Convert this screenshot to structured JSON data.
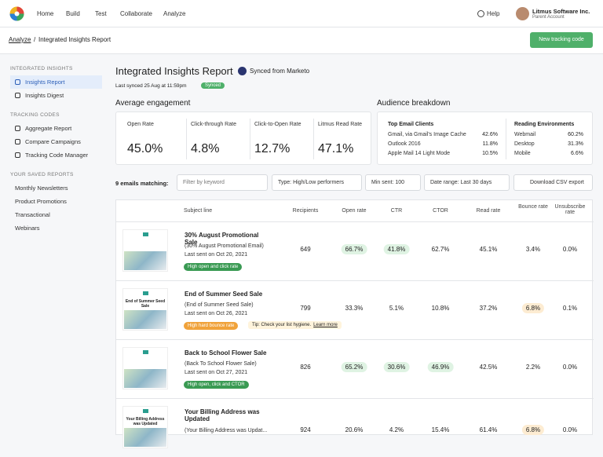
{
  "nav": {
    "items": [
      "Home",
      "Build",
      "Test",
      "Collaborate",
      "Analyze"
    ],
    "help": "Help",
    "account": "Litmus Software Inc.",
    "account_sub": "Parent Account"
  },
  "breadcrumb": {
    "parent": "Analyze",
    "separator": "/",
    "current": "Integrated Insights Report",
    "button": "New tracking code"
  },
  "sidebar": [
    {
      "heading": "INTEGRATED INSIGHTS",
      "items": [
        "Insights Report",
        "Insights Digest"
      ]
    },
    {
      "heading": "TRACKING CODES",
      "items": [
        "Aggregate Report",
        "Compare Campaigns",
        "Tracking Code Manager"
      ]
    },
    {
      "heading": "YOUR SAVED REPORTS",
      "items": [
        "Monthly Newsletters",
        "Product Promotions",
        "Transactional",
        "Webinars"
      ]
    }
  ],
  "header": {
    "title": "Integrated Insights Report",
    "sync_source": "Synced from Marketo",
    "last_synced": "Last synced 25 Aug at 11:59pm",
    "badge": "Synced"
  },
  "engagement": {
    "title": "Average engagement",
    "metrics": [
      {
        "label": "Open Rate",
        "value": "45.0%"
      },
      {
        "label": "Click-through Rate",
        "value": "4.8%"
      },
      {
        "label": "Click-to-Open Rate",
        "value": "12.7%"
      },
      {
        "label": "Litmus Read Rate",
        "value": "47.1%"
      }
    ]
  },
  "audience": {
    "title": "Audience breakdown",
    "groups": [
      {
        "heading": "Top Email Clients",
        "rows": [
          [
            "Gmail, via Gmail's Image Cache",
            "42.6%"
          ],
          [
            "Outlook 2016",
            "11.8%"
          ],
          [
            "Apple Mail 14 Light Mode",
            "10.5%"
          ]
        ]
      },
      {
        "heading": "Reading Environments",
        "rows": [
          [
            "Webmail",
            "60.2%"
          ],
          [
            "Desktop",
            "31.3%"
          ],
          [
            "Mobile",
            "6.6%"
          ]
        ]
      }
    ]
  },
  "filters": {
    "count": "9 emails matching:",
    "search_placeholder": "Filter by keyword",
    "type": "Type: High/Low performers",
    "min_sent": "Min sent: 100",
    "date_range": "Date range: Last 30 days",
    "download": "Download CSV export"
  },
  "table": {
    "headers": [
      "Subject line",
      "Recipients",
      "Open rate",
      "CTR",
      "CTOR",
      "Read rate",
      "Bounce rate",
      "Unsubscribe rate"
    ],
    "rows": [
      {
        "subject": "30% August Promotional Sale",
        "name": "(30% August Promotional Email)",
        "sent": "Last sent on Oct 20, 2021",
        "tag": {
          "text": "High open and click rate",
          "color": "#3a9a53"
        },
        "cells": [
          "649",
          {
            "text": "66.7%",
            "badge": "#dff3e3"
          },
          {
            "text": "41.8%",
            "badge": "#dff3e3"
          },
          "62.7%",
          "45.1%",
          "3.4%",
          "0.0%"
        ]
      },
      {
        "subject": "End of Summer Seed Sale",
        "name": "(End of Summer Seed Sale)",
        "sent": "Last sent on Oct 26, 2021",
        "thumb_text": "End of Summer Seed Sale",
        "tag": {
          "text": "High hard bounce rate",
          "color": "#f0a23a"
        },
        "tip": "Tip: Check your list hygiene.",
        "tip_link": "Learn more",
        "cells": [
          "799",
          "33.3%",
          "5.1%",
          "10.8%",
          "37.2%",
          {
            "text": "6.8%",
            "badge": "#fdecd2"
          },
          "0.1%"
        ]
      },
      {
        "subject": "Back to School Flower Sale",
        "name": "(Back To School Flower Sale)",
        "sent": "Last sent on Oct 27, 2021",
        "tag": {
          "text": "High open, click and CTOR",
          "color": "#3a9a53"
        },
        "cells": [
          "826",
          {
            "text": "65.2%",
            "badge": "#dff3e3"
          },
          {
            "text": "30.6%",
            "badge": "#dff3e3"
          },
          {
            "text": "46.9%",
            "badge": "#dff3e3"
          },
          "42.5%",
          "2.2%",
          "0.0%"
        ]
      },
      {
        "subject": "Your Billing Address was Updated",
        "name": "(Your Billing Address was Updat...",
        "thumb_text": "Your Billing Address was Updated",
        "cells": [
          "924",
          "20.6%",
          "4.2%",
          "15.4%",
          "61.4%",
          {
            "text": "6.8%",
            "badge": "#fdecd2"
          },
          "0.0%"
        ]
      }
    ]
  }
}
